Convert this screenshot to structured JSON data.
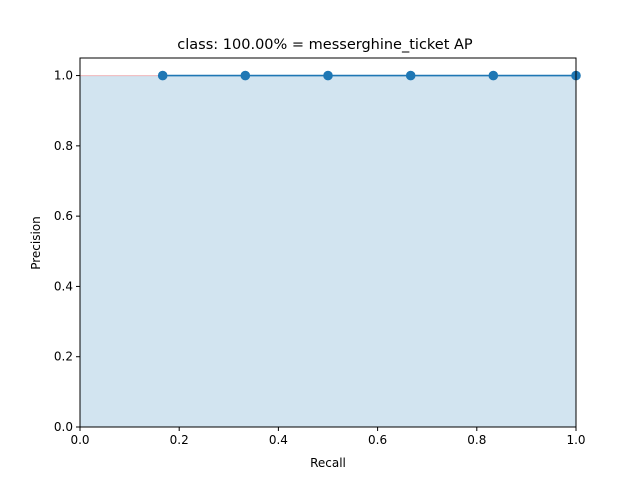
{
  "chart_data": {
    "type": "line",
    "title": "class: 100.00% = messerghine_ticket AP",
    "xlabel": "Recall",
    "ylabel": "Precision",
    "xlim": [
      0.0,
      1.0
    ],
    "ylim": [
      0.0,
      1.05
    ],
    "x_ticks": [
      "0.0",
      "0.2",
      "0.4",
      "0.6",
      "0.8",
      "1.0"
    ],
    "y_ticks": [
      "0.0",
      "0.2",
      "0.4",
      "0.6",
      "0.8",
      "1.0"
    ],
    "grid": false,
    "legend": "none",
    "series": [
      {
        "style": "line-with-markers",
        "color": "#1f77b4",
        "x": [
          0.1667,
          0.3333,
          0.5,
          0.6667,
          0.8333,
          1.0
        ],
        "y": [
          1.0,
          1.0,
          1.0,
          1.0,
          1.0,
          1.0
        ]
      }
    ],
    "filled_area": {
      "color": "#1f77b4",
      "opacity": 0.2,
      "x": [
        0.0,
        1.0
      ],
      "y": [
        1.0,
        1.0
      ]
    },
    "interpolated_precision": {
      "color": "#ff0000",
      "x": [
        0.0,
        0.1667
      ],
      "y": [
        1.0,
        1.0
      ]
    }
  }
}
